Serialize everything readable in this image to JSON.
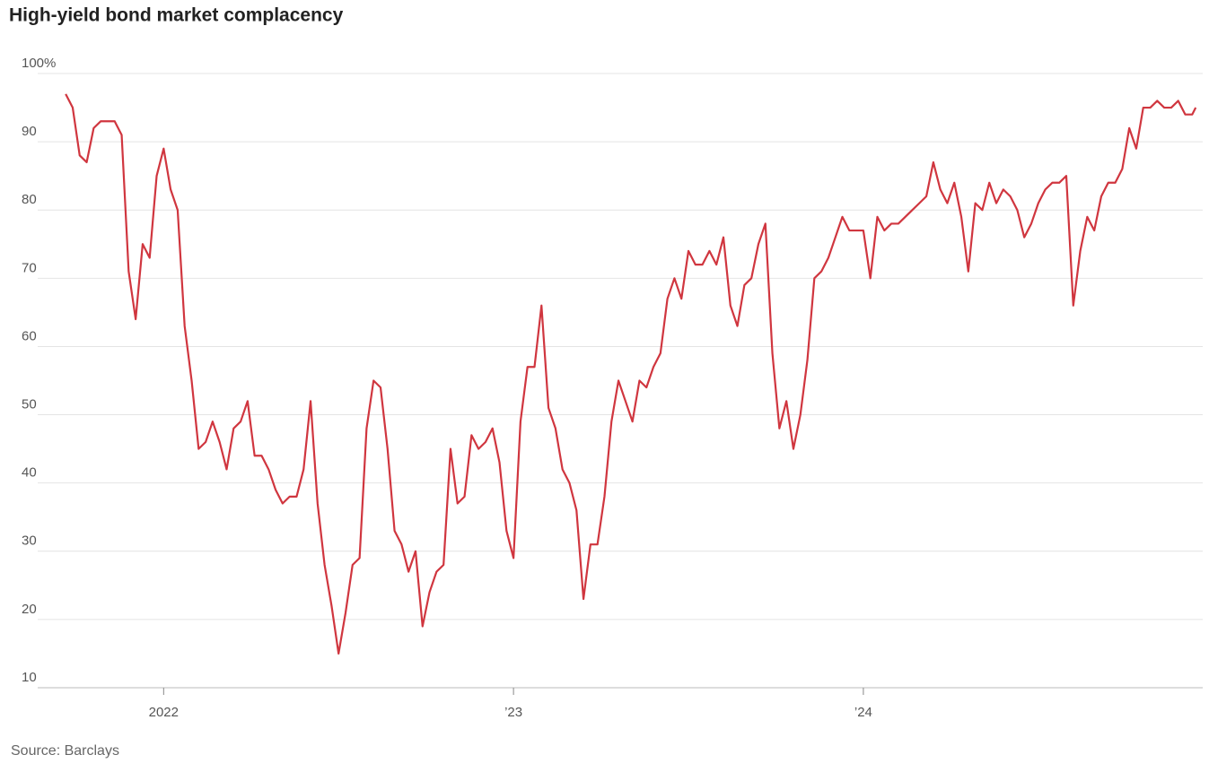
{
  "chart_data": {
    "type": "line",
    "title": "High-yield bond market complacency",
    "source": "Source: Barclays",
    "x": [
      2021.72,
      2021.74,
      2021.76,
      2021.78,
      2021.8,
      2021.82,
      2021.84,
      2021.86,
      2021.88,
      2021.9,
      2021.92,
      2021.94,
      2021.96,
      2021.98,
      2022,
      2022.02,
      2022.04,
      2022.06,
      2022.08,
      2022.1,
      2022.12,
      2022.14,
      2022.16,
      2022.18,
      2022.2,
      2022.22,
      2022.24,
      2022.26,
      2022.28,
      2022.3,
      2022.32,
      2022.34,
      2022.36,
      2022.38,
      2022.4,
      2022.42,
      2022.44,
      2022.46,
      2022.48,
      2022.5,
      2022.52,
      2022.54,
      2022.56,
      2022.58,
      2022.6,
      2022.62,
      2022.64,
      2022.66,
      2022.68,
      2022.7,
      2022.72,
      2022.74,
      2022.76,
      2022.78,
      2022.8,
      2022.82,
      2022.84,
      2022.86,
      2022.88,
      2022.9,
      2022.92,
      2022.94,
      2022.96,
      2022.98,
      2023,
      2023.02,
      2023.04,
      2023.06,
      2023.08,
      2023.1,
      2023.12,
      2023.14,
      2023.16,
      2023.18,
      2023.2,
      2023.22,
      2023.24,
      2023.26,
      2023.28,
      2023.3,
      2023.32,
      2023.34,
      2023.36,
      2023.38,
      2023.4,
      2023.42,
      2023.44,
      2023.46,
      2023.48,
      2023.5,
      2023.52,
      2023.54,
      2023.56,
      2023.58,
      2023.6,
      2023.62,
      2023.64,
      2023.66,
      2023.68,
      2023.7,
      2023.72,
      2023.74,
      2023.76,
      2023.78,
      2023.8,
      2023.82,
      2023.84,
      2023.86,
      2023.88,
      2023.9,
      2023.92,
      2023.94,
      2023.96,
      2023.98,
      2024,
      2024.02,
      2024.04,
      2024.06,
      2024.08,
      2024.1,
      2024.12,
      2024.14,
      2024.16,
      2024.18,
      2024.2,
      2024.22,
      2024.24,
      2024.26,
      2024.28,
      2024.3,
      2024.32,
      2024.34,
      2024.36,
      2024.38,
      2024.4,
      2024.42,
      2024.44,
      2024.46,
      2024.48,
      2024.5,
      2024.52,
      2024.54,
      2024.56,
      2024.58,
      2024.6,
      2024.62,
      2024.64,
      2024.66,
      2024.68,
      2024.7,
      2024.72,
      2024.74,
      2024.76,
      2024.78,
      2024.8,
      2024.82,
      2024.84,
      2024.86,
      2024.88,
      2024.9,
      2024.92,
      2024.94,
      2024.95
    ],
    "values": [
      97,
      95,
      88,
      87,
      92,
      93,
      93,
      93,
      91,
      71,
      64,
      75,
      73,
      85,
      89,
      83,
      80,
      63,
      55,
      45,
      46,
      49,
      46,
      42,
      48,
      49,
      52,
      44,
      44,
      42,
      39,
      37,
      38,
      38,
      42,
      52,
      37,
      28,
      22,
      15,
      21,
      28,
      29,
      48,
      55,
      54,
      45,
      33,
      31,
      27,
      30,
      19,
      24,
      27,
      28,
      45,
      37,
      38,
      47,
      45,
      46,
      48,
      43,
      33,
      29,
      49,
      57,
      57,
      66,
      51,
      48,
      42,
      40,
      36,
      23,
      31,
      31,
      38,
      49,
      55,
      52,
      49,
      55,
      54,
      57,
      59,
      67,
      70,
      67,
      74,
      72,
      72,
      74,
      72,
      76,
      66,
      63,
      69,
      70,
      75,
      78,
      59,
      48,
      52,
      45,
      50,
      58,
      70,
      71,
      73,
      76,
      79,
      77,
      77,
      77,
      70,
      79,
      77,
      78,
      78,
      79,
      80,
      81,
      82,
      87,
      83,
      81,
      84,
      79,
      71,
      81,
      80,
      84,
      81,
      83,
      82,
      80,
      76,
      78,
      81,
      83,
      84,
      84,
      85,
      66,
      74,
      79,
      77,
      82,
      84,
      84,
      86,
      92,
      89,
      95,
      95,
      96,
      95,
      95,
      96,
      94,
      94,
      95
    ],
    "color": "#d0363f",
    "xlim": [
      2021.64,
      2024.97
    ],
    "xticks": [
      {
        "value": 2022,
        "label": "2022"
      },
      {
        "value": 2023,
        "label": "’23"
      },
      {
        "value": 2024,
        "label": "’24"
      }
    ],
    "ylim": [
      10,
      100
    ],
    "yticks": [
      10,
      20,
      30,
      40,
      50,
      60,
      70,
      80,
      90,
      {
        "value": 100,
        "label": "100%"
      }
    ],
    "grid": true
  }
}
